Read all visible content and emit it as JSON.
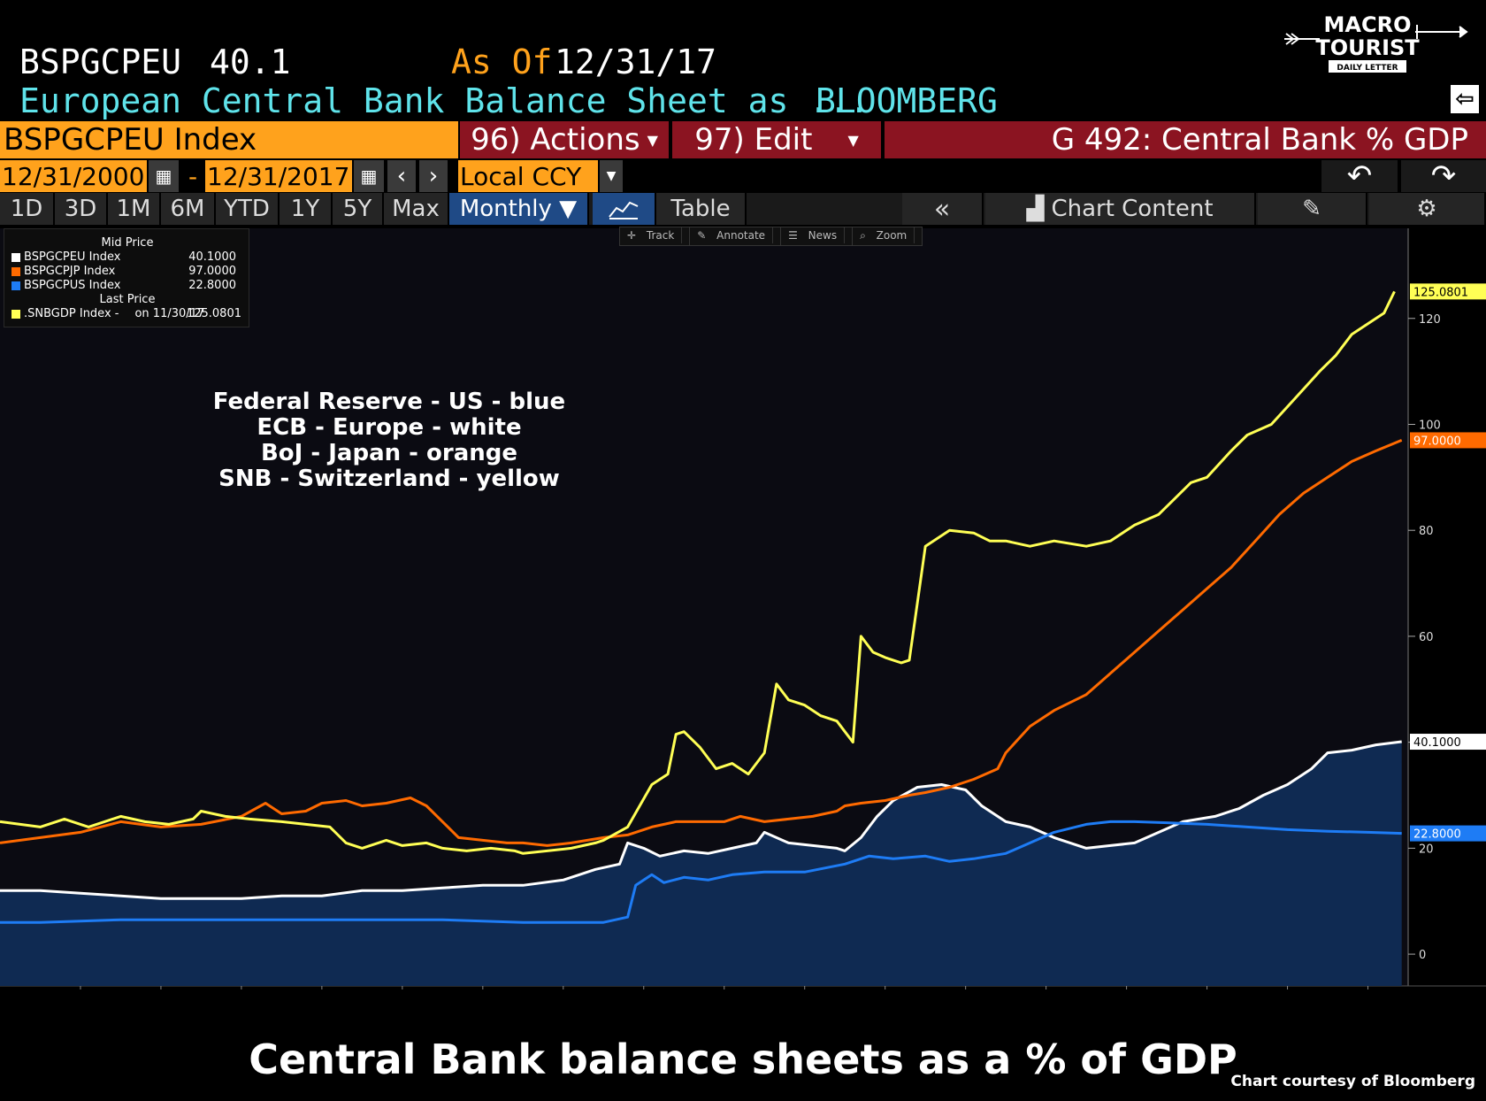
{
  "header": {
    "ticker": "BSPGCPEU",
    "value": "40.1",
    "as_of_label": "As Of",
    "as_of_date": "12/31/17",
    "description": "European Central Bank Balance Sheet as ...",
    "source": "BLOOMBERG"
  },
  "logo": {
    "line1": "MACRO",
    "line2": "TOURIST",
    "line3": "DAILY LETTER"
  },
  "toolbar": {
    "security": "BSPGCPEU Index",
    "actions": "96) Actions",
    "edit": "97) Edit",
    "page_title": "G 492: Central Bank % GDP",
    "start_date": "12/31/2000",
    "date_sep": "-",
    "end_date": "12/31/2017",
    "currency": "Local CCY",
    "periods": [
      "1D",
      "3D",
      "1M",
      "6M",
      "YTD",
      "1Y",
      "5Y",
      "Max"
    ],
    "frequency": "Monthly ▼",
    "table": "Table",
    "chart_content": "Chart Content"
  },
  "chart_tools": [
    "Track",
    "Annotate",
    "News",
    "Zoom"
  ],
  "legend": {
    "mid_price_label": "Mid Price",
    "last_price_label": "Last Price",
    "rows": [
      {
        "name": "BSPGCPEU Index",
        "value": "40.1000",
        "color": "#ffffff"
      },
      {
        "name": "BSPGCPJP Index",
        "value": "97.0000",
        "color": "#ff6a00"
      },
      {
        "name": "BSPGCPUS Index",
        "value": "22.8000",
        "color": "#1e7cf5"
      },
      {
        "name": ".SNBGDP Index -",
        "extra": "on 11/30/17",
        "value": "125.0801",
        "color": "#ffff55"
      }
    ]
  },
  "annotations": [
    "Federal Reserve - US - blue",
    "ECB - Europe - white",
    "BoJ - Japan - orange",
    "SNB - Switzerland - yellow"
  ],
  "caption": "Central Bank balance sheets as a % of GDP",
  "credit": "Chart courtesy of Bloomberg",
  "chart_data": {
    "type": "line",
    "title": "",
    "xlabel": "",
    "ylabel": "",
    "ylim": [
      -6,
      137
    ],
    "yticks": [
      0,
      20,
      40,
      60,
      80,
      100,
      120
    ],
    "xticks": [
      2001,
      2002,
      2003,
      2004,
      2005,
      2006,
      2007,
      2008,
      2009,
      2010,
      2011,
      2012,
      2013,
      2014,
      2015,
      2016,
      2017
    ],
    "xlim": [
      2000.5,
      2018.0
    ],
    "grid": false,
    "legend_position": "top-left",
    "series": [
      {
        "name": "BSPGCPEU Index",
        "color": "#ffffff",
        "area": true,
        "last": "40.1000",
        "points": [
          [
            2000.5,
            12.0
          ],
          [
            2001.0,
            12.0
          ],
          [
            2001.5,
            11.5
          ],
          [
            2002.0,
            11.0
          ],
          [
            2002.5,
            10.5
          ],
          [
            2003.0,
            10.5
          ],
          [
            2003.5,
            10.5
          ],
          [
            2004.0,
            11.0
          ],
          [
            2004.5,
            11.0
          ],
          [
            2005.0,
            12.0
          ],
          [
            2005.5,
            12.0
          ],
          [
            2006.0,
            12.5
          ],
          [
            2006.5,
            13.0
          ],
          [
            2007.0,
            13.0
          ],
          [
            2007.5,
            14.0
          ],
          [
            2007.9,
            16.0
          ],
          [
            2008.2,
            17.0
          ],
          [
            2008.3,
            21.0
          ],
          [
            2008.5,
            20.0
          ],
          [
            2008.7,
            18.5
          ],
          [
            2009.0,
            19.5
          ],
          [
            2009.3,
            19.0
          ],
          [
            2009.6,
            20.0
          ],
          [
            2009.9,
            21.0
          ],
          [
            2010.0,
            23.0
          ],
          [
            2010.3,
            21.0
          ],
          [
            2010.6,
            20.5
          ],
          [
            2010.9,
            20.0
          ],
          [
            2011.0,
            19.5
          ],
          [
            2011.2,
            22.0
          ],
          [
            2011.4,
            26.0
          ],
          [
            2011.6,
            29.0
          ],
          [
            2011.9,
            31.5
          ],
          [
            2012.2,
            32.0
          ],
          [
            2012.5,
            31.0
          ],
          [
            2012.7,
            28.0
          ],
          [
            2013.0,
            25.0
          ],
          [
            2013.3,
            24.0
          ],
          [
            2013.6,
            22.0
          ],
          [
            2014.0,
            20.0
          ],
          [
            2014.3,
            20.5
          ],
          [
            2014.6,
            21.0
          ],
          [
            2014.9,
            23.0
          ],
          [
            2015.2,
            25.0
          ],
          [
            2015.6,
            26.0
          ],
          [
            2015.9,
            27.5
          ],
          [
            2016.2,
            30.0
          ],
          [
            2016.5,
            32.0
          ],
          [
            2016.8,
            35.0
          ],
          [
            2017.0,
            38.0
          ],
          [
            2017.3,
            38.5
          ],
          [
            2017.6,
            39.5
          ],
          [
            2017.92,
            40.1
          ]
        ]
      },
      {
        "name": "BSPGCPJP Index",
        "color": "#ff6a00",
        "last": "97.0000",
        "points": [
          [
            2000.5,
            21.0
          ],
          [
            2001.0,
            22.0
          ],
          [
            2001.5,
            23.0
          ],
          [
            2002.0,
            25.0
          ],
          [
            2002.5,
            24.0
          ],
          [
            2003.0,
            24.5
          ],
          [
            2003.5,
            26.0
          ],
          [
            2003.8,
            28.5
          ],
          [
            2004.0,
            26.5
          ],
          [
            2004.3,
            27.0
          ],
          [
            2004.5,
            28.5
          ],
          [
            2004.8,
            29.0
          ],
          [
            2005.0,
            28.0
          ],
          [
            2005.3,
            28.5
          ],
          [
            2005.6,
            29.5
          ],
          [
            2005.8,
            28.0
          ],
          [
            2006.0,
            25.0
          ],
          [
            2006.2,
            22.0
          ],
          [
            2006.5,
            21.5
          ],
          [
            2006.8,
            21.0
          ],
          [
            2007.0,
            21.0
          ],
          [
            2007.3,
            20.5
          ],
          [
            2007.6,
            21.0
          ],
          [
            2008.0,
            22.0
          ],
          [
            2008.3,
            22.5
          ],
          [
            2008.6,
            24.0
          ],
          [
            2008.9,
            25.0
          ],
          [
            2009.2,
            25.0
          ],
          [
            2009.5,
            25.0
          ],
          [
            2009.7,
            26.0
          ],
          [
            2010.0,
            25.0
          ],
          [
            2010.3,
            25.5
          ],
          [
            2010.6,
            26.0
          ],
          [
            2010.9,
            27.0
          ],
          [
            2011.0,
            28.0
          ],
          [
            2011.2,
            28.5
          ],
          [
            2011.5,
            29.0
          ],
          [
            2011.8,
            30.0
          ],
          [
            2012.0,
            30.5
          ],
          [
            2012.3,
            31.5
          ],
          [
            2012.6,
            33.0
          ],
          [
            2012.9,
            35.0
          ],
          [
            2013.0,
            38.0
          ],
          [
            2013.3,
            43.0
          ],
          [
            2013.6,
            46.0
          ],
          [
            2014.0,
            49.0
          ],
          [
            2014.3,
            53.0
          ],
          [
            2014.6,
            57.0
          ],
          [
            2014.9,
            61.0
          ],
          [
            2015.2,
            65.0
          ],
          [
            2015.5,
            69.0
          ],
          [
            2015.8,
            73.0
          ],
          [
            2016.1,
            78.0
          ],
          [
            2016.4,
            83.0
          ],
          [
            2016.7,
            87.0
          ],
          [
            2017.0,
            90.0
          ],
          [
            2017.3,
            93.0
          ],
          [
            2017.6,
            95.0
          ],
          [
            2017.92,
            97.0
          ]
        ]
      },
      {
        "name": "BSPGCPUS Index",
        "color": "#1e7cf5",
        "last": "22.8000",
        "points": [
          [
            2000.5,
            6.0
          ],
          [
            2001.0,
            6.0
          ],
          [
            2002.0,
            6.5
          ],
          [
            2003.0,
            6.5
          ],
          [
            2004.0,
            6.5
          ],
          [
            2005.0,
            6.5
          ],
          [
            2006.0,
            6.5
          ],
          [
            2007.0,
            6.0
          ],
          [
            2008.0,
            6.0
          ],
          [
            2008.3,
            7.0
          ],
          [
            2008.4,
            13.0
          ],
          [
            2008.6,
            15.0
          ],
          [
            2008.75,
            13.5
          ],
          [
            2009.0,
            14.5
          ],
          [
            2009.3,
            14.0
          ],
          [
            2009.6,
            15.0
          ],
          [
            2010.0,
            15.5
          ],
          [
            2010.5,
            15.5
          ],
          [
            2011.0,
            17.0
          ],
          [
            2011.3,
            18.5
          ],
          [
            2011.6,
            18.0
          ],
          [
            2012.0,
            18.5
          ],
          [
            2012.3,
            17.5
          ],
          [
            2012.6,
            18.0
          ],
          [
            2013.0,
            19.0
          ],
          [
            2013.3,
            21.0
          ],
          [
            2013.6,
            23.0
          ],
          [
            2014.0,
            24.5
          ],
          [
            2014.3,
            25.0
          ],
          [
            2014.6,
            25.0
          ],
          [
            2015.0,
            24.8
          ],
          [
            2015.5,
            24.5
          ],
          [
            2016.0,
            24.0
          ],
          [
            2016.5,
            23.5
          ],
          [
            2017.0,
            23.2
          ],
          [
            2017.5,
            23.0
          ],
          [
            2017.92,
            22.8
          ]
        ]
      },
      {
        "name": ".SNBGDP Index",
        "color": "#ffff55",
        "last": "125.0801",
        "points": [
          [
            2000.5,
            25.0
          ],
          [
            2001.0,
            24.0
          ],
          [
            2001.3,
            25.5
          ],
          [
            2001.6,
            24.0
          ],
          [
            2002.0,
            26.0
          ],
          [
            2002.3,
            25.0
          ],
          [
            2002.6,
            24.5
          ],
          [
            2002.9,
            25.5
          ],
          [
            2003.0,
            27.0
          ],
          [
            2003.3,
            26.0
          ],
          [
            2003.6,
            25.5
          ],
          [
            2004.0,
            25.0
          ],
          [
            2004.3,
            24.5
          ],
          [
            2004.6,
            24.0
          ],
          [
            2004.8,
            21.0
          ],
          [
            2005.0,
            20.0
          ],
          [
            2005.3,
            21.5
          ],
          [
            2005.5,
            20.5
          ],
          [
            2005.8,
            21.0
          ],
          [
            2006.0,
            20.0
          ],
          [
            2006.3,
            19.5
          ],
          [
            2006.6,
            20.0
          ],
          [
            2006.9,
            19.5
          ],
          [
            2007.0,
            19.0
          ],
          [
            2007.3,
            19.5
          ],
          [
            2007.6,
            20.0
          ],
          [
            2007.9,
            21.0
          ],
          [
            2008.0,
            21.5
          ],
          [
            2008.3,
            24.0
          ],
          [
            2008.6,
            32.0
          ],
          [
            2008.8,
            34.0
          ],
          [
            2008.9,
            41.5
          ],
          [
            2009.0,
            42.0
          ],
          [
            2009.2,
            39.0
          ],
          [
            2009.4,
            35.0
          ],
          [
            2009.6,
            36.0
          ],
          [
            2009.8,
            34.0
          ],
          [
            2010.0,
            38.0
          ],
          [
            2010.15,
            51.0
          ],
          [
            2010.3,
            48.0
          ],
          [
            2010.5,
            47.0
          ],
          [
            2010.7,
            45.0
          ],
          [
            2010.9,
            44.0
          ],
          [
            2011.0,
            42.0
          ],
          [
            2011.1,
            40.0
          ],
          [
            2011.2,
            60.0
          ],
          [
            2011.35,
            57.0
          ],
          [
            2011.5,
            56.0
          ],
          [
            2011.7,
            55.0
          ],
          [
            2011.8,
            55.5
          ],
          [
            2012.0,
            77.0
          ],
          [
            2012.3,
            80.0
          ],
          [
            2012.6,
            79.5
          ],
          [
            2012.8,
            78.0
          ],
          [
            2013.0,
            78.0
          ],
          [
            2013.3,
            77.0
          ],
          [
            2013.6,
            78.0
          ],
          [
            2014.0,
            77.0
          ],
          [
            2014.3,
            78.0
          ],
          [
            2014.6,
            81.0
          ],
          [
            2014.9,
            83.0
          ],
          [
            2015.1,
            86.0
          ],
          [
            2015.3,
            89.0
          ],
          [
            2015.5,
            90.0
          ],
          [
            2015.8,
            95.0
          ],
          [
            2016.0,
            98.0
          ],
          [
            2016.3,
            100.0
          ],
          [
            2016.6,
            105.0
          ],
          [
            2016.9,
            110.0
          ],
          [
            2017.1,
            113.0
          ],
          [
            2017.3,
            117.0
          ],
          [
            2017.5,
            119.0
          ],
          [
            2017.7,
            121.0
          ],
          [
            2017.83,
            125.08
          ]
        ]
      }
    ]
  }
}
